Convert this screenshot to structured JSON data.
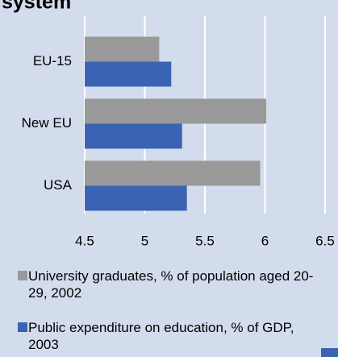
{
  "chart_data": {
    "type": "barh",
    "title": "system",
    "categories": [
      "EU-15",
      "New EU",
      "USA"
    ],
    "series": [
      {
        "name": "University graduates, % of population aged 20-29, 2002",
        "color": "#999999",
        "values": [
          5.12,
          6.01,
          5.96
        ]
      },
      {
        "name": "Public expenditure on education, % of GDP, 2003",
        "color": "#3a63b3",
        "values": [
          5.22,
          5.31,
          5.35
        ]
      }
    ],
    "xlim": [
      4.5,
      6.5
    ],
    "xticks": [
      4.5,
      5,
      5.5,
      6,
      6.5
    ],
    "grid": true
  }
}
